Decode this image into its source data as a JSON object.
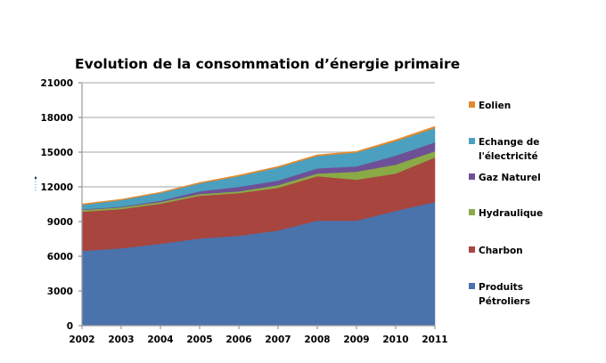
{
  "chart_data": {
    "type": "area",
    "stacked": true,
    "title": "Evolution de la consommation d’énergie primaire",
    "xlabel": "",
    "ylabel": "",
    "ylim": [
      0,
      21000
    ],
    "yticks": [
      "0",
      "3000",
      "6000",
      "9000",
      "12000",
      "15000",
      "18000",
      "21000"
    ],
    "ytick_values": [
      0,
      3000,
      6000,
      9000,
      12000,
      15000,
      18000,
      21000
    ],
    "grid": true,
    "legend_position": "right",
    "categories": [
      "2002",
      "2003",
      "2004",
      "2005",
      "2006",
      "2007",
      "2008",
      "2009",
      "2010",
      "2011"
    ],
    "series": [
      {
        "name": "Produits Pétroliers",
        "legend_lines": [
          "Produits",
          "Pétroliers"
        ],
        "color": "#4a72ab",
        "values": [
          6460,
          6690,
          7080,
          7540,
          7770,
          8230,
          9080,
          9080,
          9920,
          10690
        ]
      },
      {
        "name": "Charbon",
        "legend_lines": [
          "Charbon"
        ],
        "color": "#a8453f",
        "values": [
          3390,
          3390,
          3460,
          3690,
          3690,
          3690,
          3840,
          3540,
          3230,
          3850
        ]
      },
      {
        "name": "Hydraulique",
        "legend_lines": [
          "Hydraulique"
        ],
        "color": "#8aaa45",
        "values": [
          150,
          150,
          150,
          150,
          150,
          230,
          230,
          690,
          770,
          540
        ]
      },
      {
        "name": "Gaz Naturel",
        "legend_lines": [
          "Gaz Naturel"
        ],
        "color": "#6e5096",
        "values": [
          50,
          60,
          110,
          240,
          390,
          390,
          450,
          460,
          780,
          770
        ]
      },
      {
        "name": "Echange de l'électricité",
        "legend_lines": [
          "Echange de",
          "l'électricité"
        ],
        "color": "#4aa0be",
        "values": [
          400,
          570,
          670,
          680,
          920,
          1130,
          1070,
          1200,
          1250,
          1230
        ]
      },
      {
        "name": "Eolien",
        "legend_lines": [
          "Eolien"
        ],
        "color": "#e48a2c",
        "values": [
          80,
          70,
          70,
          80,
          100,
          100,
          100,
          100,
          130,
          150
        ]
      }
    ],
    "legend_order": [
      "Eolien",
      "Echange de l'électricité",
      "Gaz Naturel",
      "Hydraulique",
      "Charbon",
      "Produits Pétroliers"
    ]
  }
}
